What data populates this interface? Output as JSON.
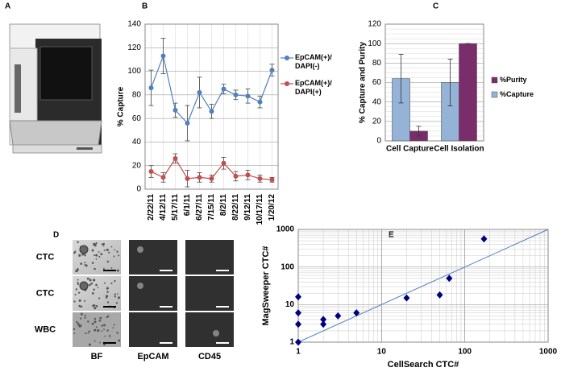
{
  "panel_labels": [
    "A",
    "B",
    "C",
    "D",
    "E"
  ],
  "micrographs": {
    "row_labels": [
      "CTC",
      "CTC",
      "WBC"
    ],
    "column_labels": [
      "BF",
      "EpCAM",
      "CD45"
    ]
  },
  "chart_data": [
    {
      "type": "line",
      "y_label": "% Capture",
      "categories": [
        "2/22/11",
        "4/12/11",
        "5/17/11",
        "6/1/11",
        "6/27/11",
        "7/15/11",
        "8/2/11",
        "8/22/11",
        "9/12/11",
        "10/17/11",
        "1/20/12"
      ],
      "series": [
        {
          "name": "EpCAM(+)/ DAPI(-)",
          "color": "#4f81bd",
          "values": [
            86,
            113,
            67,
            56,
            82,
            66,
            85,
            80,
            79,
            74,
            101
          ],
          "errors": [
            15,
            15,
            6,
            15,
            13,
            6,
            4,
            4,
            6,
            5,
            5
          ]
        },
        {
          "name": "EpCAM(+)/ DAPI(+)",
          "color": "#c0504d",
          "values": [
            15,
            10,
            26,
            9,
            10,
            9,
            22,
            11,
            12,
            9,
            8
          ],
          "errors": [
            5,
            4,
            4,
            7,
            4,
            3,
            5,
            4,
            4,
            3,
            2
          ]
        }
      ],
      "ylim": [
        0,
        140
      ],
      "yticks": [
        0,
        20,
        40,
        60,
        80,
        100,
        120,
        140
      ],
      "grid": true,
      "legend": "right"
    },
    {
      "type": "bar",
      "y_label": "% Capture and Purity",
      "categories": [
        "Cell Capture",
        "Cell Isolation"
      ],
      "series": [
        {
          "name": "%Capture",
          "color": "#95b3d7",
          "values": [
            64,
            60
          ],
          "errors": [
            25,
            24
          ]
        },
        {
          "name": "%Purity",
          "color": "#7b2c6b",
          "values": [
            10,
            100
          ],
          "errors": [
            5,
            0
          ]
        }
      ],
      "ylim": [
        0,
        120
      ],
      "yticks": [
        0,
        20,
        40,
        60,
        80,
        100,
        120
      ],
      "grid": true,
      "legend": "right"
    },
    {
      "type": "scatter",
      "x_label": "CellSearch CTC#",
      "y_label": "MagSweeper CTC#",
      "x": [
        1,
        1,
        1,
        1,
        2,
        2,
        3,
        5,
        20,
        50,
        65,
        170
      ],
      "values": [
        1,
        3,
        6,
        16,
        3,
        4,
        5,
        6,
        15,
        18,
        50,
        560
      ],
      "color": "#000080",
      "line_color": "#4f81bd",
      "xlim": [
        1,
        1000
      ],
      "ylim": [
        1,
        1000
      ],
      "xticks": [
        1,
        10,
        100,
        1000
      ],
      "yticks": [
        1,
        10,
        100,
        1000
      ],
      "log_scale": true,
      "grid": true,
      "identity_line": true
    }
  ]
}
